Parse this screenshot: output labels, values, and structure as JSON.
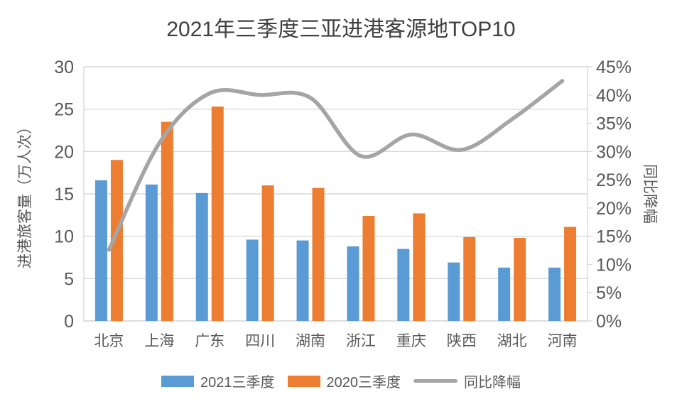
{
  "title": "2021年三季度三亚进港客源地TOP10",
  "chart_data": {
    "type": "bar",
    "subtype": "grouped-bars-with-smooth-line",
    "categories": [
      "北京",
      "上海",
      "广东",
      "四川",
      "湖南",
      "浙江",
      "重庆",
      "陕西",
      "湖北",
      "河南"
    ],
    "series": [
      {
        "name": "2021三季度",
        "type": "bar",
        "axis": "left",
        "color": "#5B9BD5",
        "values": [
          16.6,
          16.1,
          15.1,
          9.6,
          9.5,
          8.8,
          8.5,
          6.9,
          6.3,
          6.3
        ]
      },
      {
        "name": "2020三季度",
        "type": "bar",
        "axis": "left",
        "color": "#ED7D31",
        "values": [
          19.0,
          23.5,
          25.3,
          16.0,
          15.7,
          12.4,
          12.7,
          9.9,
          9.8,
          11.1
        ]
      },
      {
        "name": "同比降幅",
        "type": "line",
        "axis": "right",
        "color": "#A5A5A5",
        "unit": "%",
        "values": [
          12.6,
          31.5,
          40.3,
          40.0,
          39.5,
          29.2,
          33.0,
          30.3,
          35.7,
          42.5
        ]
      }
    ],
    "left_axis": {
      "title": "进港旅客量（万人次）",
      "min": 0,
      "max": 30,
      "step": 5,
      "tick_labels": [
        "0",
        "5",
        "10",
        "15",
        "20",
        "25",
        "30"
      ]
    },
    "right_axis": {
      "title": "同比降幅",
      "min": 0,
      "max": 45,
      "step": 5,
      "format": "percent",
      "tick_labels": [
        "0%",
        "5%",
        "10%",
        "15%",
        "20%",
        "25%",
        "30%",
        "35%",
        "40%",
        "45%"
      ]
    },
    "grid": "horizontal",
    "legend_position": "bottom"
  },
  "colors": {
    "bar_2021": "#5B9BD5",
    "bar_2020": "#ED7D31",
    "trend_line": "#A5A5A5",
    "gridline": "#D9D9D9",
    "axis_text": "#595959",
    "title_text": "#404040"
  }
}
